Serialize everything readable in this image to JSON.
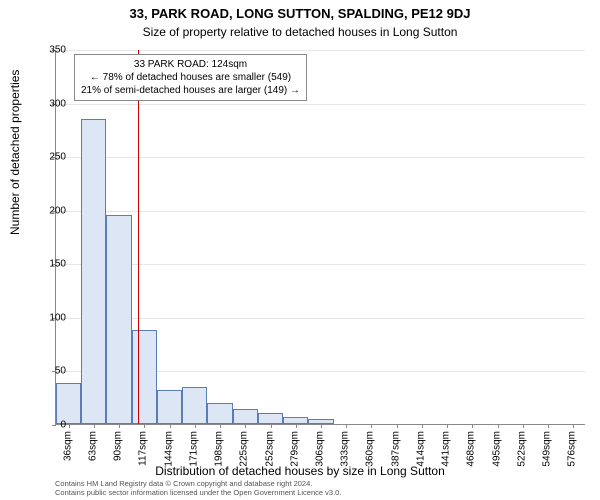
{
  "titles": {
    "line1": "33, PARK ROAD, LONG SUTTON, SPALDING, PE12 9DJ",
    "line2": "Size of property relative to detached houses in Long Sutton"
  },
  "chart": {
    "type": "histogram",
    "ylabel": "Number of detached properties",
    "xlabel": "Distribution of detached houses by size in Long Sutton",
    "ylim": [
      0,
      350
    ],
    "ytick_step": 50,
    "yticks": [
      0,
      50,
      100,
      150,
      200,
      250,
      300,
      350
    ],
    "background_color": "#ffffff",
    "grid_color": "#e6e6e6",
    "axis_color": "#888888",
    "bar_fill": "#dde6f4",
    "bar_border": "#5b7db5",
    "marker_color": "#cc0000",
    "label_fontsize": 12,
    "tick_fontsize": 10,
    "bins": [
      {
        "label": "36sqm",
        "value": 38
      },
      {
        "label": "63sqm",
        "value": 285
      },
      {
        "label": "90sqm",
        "value": 195
      },
      {
        "label": "117sqm",
        "value": 88
      },
      {
        "label": "144sqm",
        "value": 32
      },
      {
        "label": "171sqm",
        "value": 35
      },
      {
        "label": "198sqm",
        "value": 20
      },
      {
        "label": "225sqm",
        "value": 14
      },
      {
        "label": "252sqm",
        "value": 10
      },
      {
        "label": "279sqm",
        "value": 7
      },
      {
        "label": "306sqm",
        "value": 5
      },
      {
        "label": "333sqm",
        "value": 0
      },
      {
        "label": "360sqm",
        "value": 0
      },
      {
        "label": "387sqm",
        "value": 0
      },
      {
        "label": "414sqm",
        "value": 0
      },
      {
        "label": "441sqm",
        "value": 0
      },
      {
        "label": "468sqm",
        "value": 0
      },
      {
        "label": "495sqm",
        "value": 0
      },
      {
        "label": "522sqm",
        "value": 0
      },
      {
        "label": "549sqm",
        "value": 0
      },
      {
        "label": "576sqm",
        "value": 0
      }
    ],
    "marker_bin_index": 3,
    "marker_position": 0.26
  },
  "annotation": {
    "line1": "33 PARK ROAD: 124sqm",
    "line2": "← 78% of detached houses are smaller (549)",
    "line3": "21% of semi-detached houses are larger (149) →",
    "border_color": "#888888",
    "background": "#ffffff"
  },
  "footer": {
    "line1": "Contains HM Land Registry data © Crown copyright and database right 2024.",
    "line2": "Contains public sector information licensed under the Open Government Licence v3.0."
  }
}
